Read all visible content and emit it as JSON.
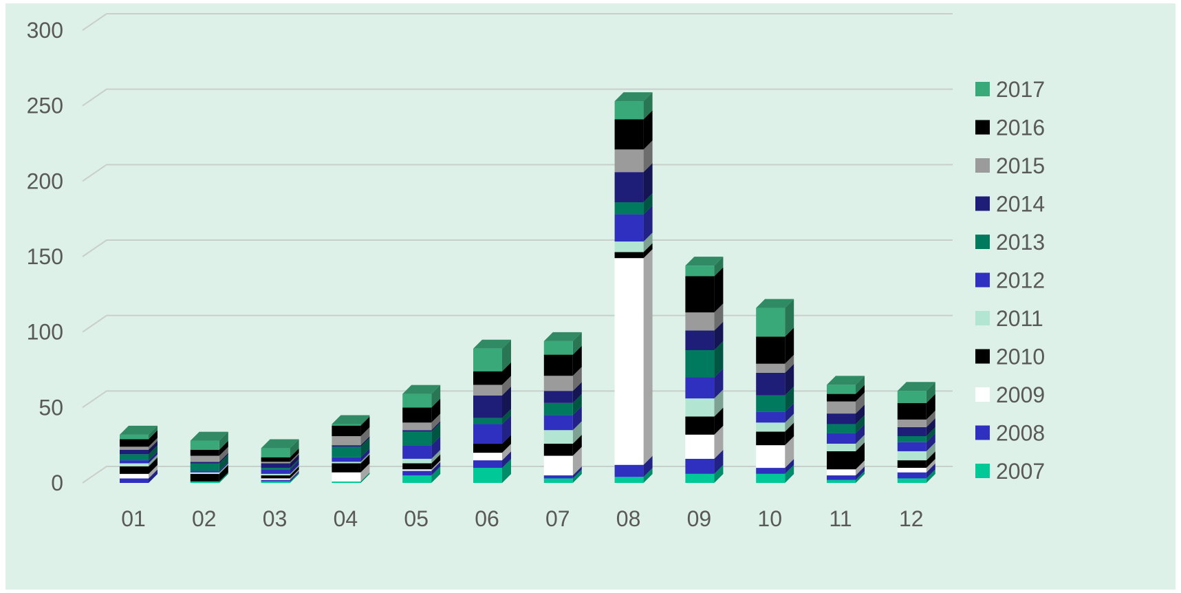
{
  "chart_data": {
    "type": "bar",
    "stacked": true,
    "three_d": true,
    "title": "",
    "xlabel": "",
    "ylabel": "",
    "ylim": [
      0,
      300
    ],
    "y_ticks": [
      "0",
      "50",
      "100",
      "150",
      "200",
      "250",
      "300"
    ],
    "grid": true,
    "legend_position": "right",
    "categories": [
      "01",
      "02",
      "03",
      "04",
      "05",
      "06",
      "07",
      "08",
      "09",
      "10",
      "11",
      "12"
    ],
    "series": [
      {
        "name": "2007",
        "color": "#00c896",
        "values": [
          0,
          1,
          1,
          1,
          5,
          10,
          3,
          4,
          6,
          6,
          2,
          3
        ]
      },
      {
        "name": "2008",
        "color": "#2f2fc0",
        "values": [
          3,
          0,
          1,
          0,
          3,
          5,
          2,
          8,
          10,
          4,
          3,
          4
        ]
      },
      {
        "name": "2009",
        "color": "#ffffff",
        "values": [
          3,
          0,
          1,
          6,
          1,
          5,
          13,
          137,
          16,
          15,
          4,
          3
        ]
      },
      {
        "name": "2010",
        "color": "#000000",
        "values": [
          5,
          5,
          2,
          6,
          4,
          6,
          8,
          4,
          12,
          9,
          12,
          5
        ]
      },
      {
        "name": "2011",
        "color": "#b2e6d2",
        "values": [
          2,
          1,
          1,
          1,
          3,
          0,
          9,
          7,
          12,
          6,
          5,
          6
        ]
      },
      {
        "name": "2012",
        "color": "#2f2fc0",
        "values": [
          2,
          1,
          3,
          3,
          9,
          13,
          10,
          18,
          14,
          7,
          7,
          6
        ]
      },
      {
        "name": "2013",
        "color": "#007a5e",
        "values": [
          4,
          5,
          1,
          7,
          9,
          4,
          8,
          8,
          18,
          11,
          6,
          4
        ]
      },
      {
        "name": "2014",
        "color": "#1e1e78",
        "values": [
          3,
          1,
          3,
          1,
          1,
          15,
          8,
          20,
          13,
          15,
          7,
          6
        ]
      },
      {
        "name": "2015",
        "color": "#9b9b9b",
        "values": [
          2,
          4,
          1,
          6,
          5,
          7,
          10,
          15,
          12,
          6,
          8,
          5
        ]
      },
      {
        "name": "2016",
        "color": "#000000",
        "values": [
          5,
          4,
          3,
          7,
          10,
          9,
          14,
          20,
          24,
          18,
          5,
          11
        ]
      },
      {
        "name": "2017",
        "color": "#3aa97a",
        "values": [
          3,
          6,
          6,
          1,
          9,
          15,
          9,
          12,
          7,
          19,
          6,
          8
        ]
      }
    ]
  }
}
